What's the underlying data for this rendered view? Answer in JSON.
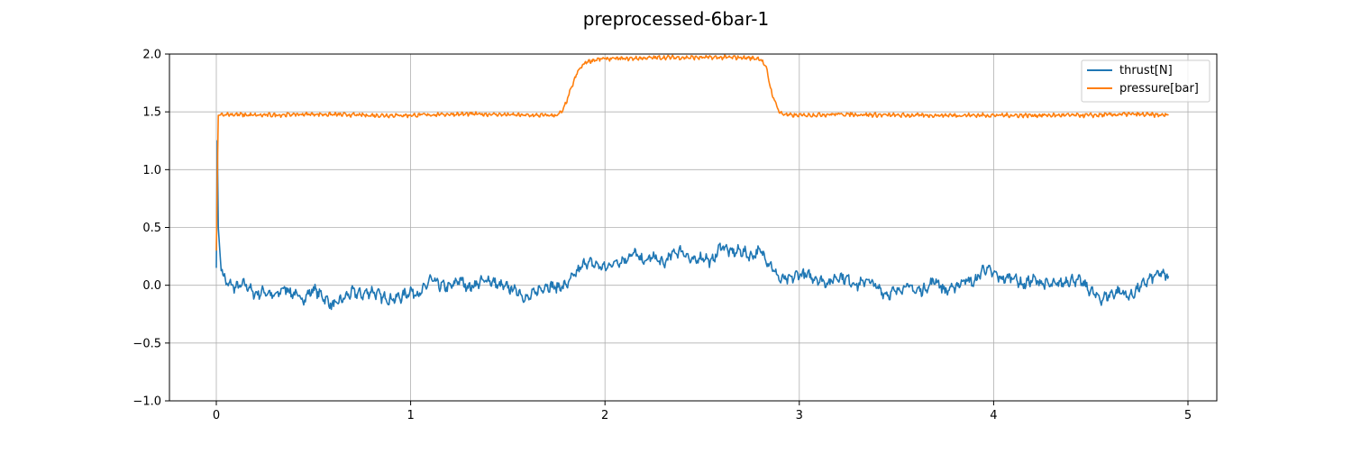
{
  "chart_data": {
    "type": "line",
    "title": "preprocessed-6bar-1",
    "xlabel": "",
    "ylabel": "",
    "xlim": [
      -0.245,
      4.9
    ],
    "ylim": [
      -1.0,
      2.0
    ],
    "grid": true,
    "legend_position": "top-right",
    "x_ticks": [
      0,
      1,
      2,
      3,
      4,
      5
    ],
    "x_tick_labels": [
      "0",
      "1",
      "2",
      "3",
      "4",
      "5"
    ],
    "y_ticks": [
      -1.0,
      -0.5,
      0.0,
      0.5,
      1.0,
      1.5,
      2.0
    ],
    "y_tick_labels": [
      "−1.0",
      "−0.5",
      "0.0",
      "0.5",
      "1.0",
      "1.5",
      "2.0"
    ],
    "series": [
      {
        "name": "thrust[N]",
        "color": "#1f77b4",
        "x": [
          0.0,
          0.005,
          0.01,
          0.02,
          0.03,
          0.05,
          0.08,
          0.1,
          0.15,
          0.2,
          0.25,
          0.3,
          0.35,
          0.4,
          0.45,
          0.5,
          0.55,
          0.6,
          0.65,
          0.7,
          0.75,
          0.8,
          0.85,
          0.9,
          0.95,
          1.0,
          1.05,
          1.1,
          1.15,
          1.2,
          1.25,
          1.3,
          1.35,
          1.4,
          1.45,
          1.5,
          1.55,
          1.6,
          1.65,
          1.7,
          1.75,
          1.8,
          1.85,
          1.9,
          1.95,
          2.0,
          2.05,
          2.1,
          2.15,
          2.2,
          2.25,
          2.3,
          2.35,
          2.4,
          2.45,
          2.5,
          2.55,
          2.6,
          2.65,
          2.7,
          2.75,
          2.8,
          2.85,
          2.9,
          2.95,
          3.0,
          3.05,
          3.1,
          3.15,
          3.2,
          3.25,
          3.3,
          3.35,
          3.4,
          3.45,
          3.5,
          3.55,
          3.6,
          3.65,
          3.7,
          3.75,
          3.8,
          3.85,
          3.9,
          3.95,
          4.0,
          4.05,
          4.1,
          4.15,
          4.2,
          4.25,
          4.3,
          4.35,
          4.4,
          4.45,
          4.5,
          4.55,
          4.6,
          4.65,
          4.7,
          4.75,
          4.8,
          4.85,
          4.9
        ],
        "y": [
          0.15,
          1.25,
          0.5,
          0.25,
          0.12,
          0.02,
          0.0,
          -0.02,
          0.01,
          -0.08,
          -0.05,
          -0.1,
          -0.02,
          -0.08,
          -0.12,
          -0.03,
          -0.1,
          -0.18,
          -0.12,
          -0.06,
          -0.08,
          -0.05,
          -0.1,
          -0.12,
          -0.1,
          -0.05,
          -0.08,
          0.05,
          0.0,
          -0.02,
          0.05,
          -0.02,
          0.02,
          0.05,
          0.0,
          -0.02,
          -0.05,
          -0.12,
          -0.05,
          0.0,
          -0.02,
          0.0,
          0.1,
          0.2,
          0.18,
          0.15,
          0.2,
          0.22,
          0.28,
          0.2,
          0.25,
          0.18,
          0.28,
          0.3,
          0.2,
          0.25,
          0.2,
          0.35,
          0.28,
          0.3,
          0.25,
          0.3,
          0.18,
          0.05,
          0.05,
          0.1,
          0.08,
          0.05,
          0.02,
          0.08,
          0.05,
          0.0,
          0.05,
          -0.02,
          -0.08,
          -0.05,
          0.0,
          -0.05,
          -0.03,
          0.05,
          -0.05,
          -0.02,
          0.05,
          0.02,
          0.15,
          0.1,
          0.05,
          0.08,
          0.0,
          0.05,
          0.02,
          0.0,
          0.02,
          0.05,
          0.03,
          -0.05,
          -0.12,
          -0.08,
          -0.05,
          -0.1,
          -0.02,
          0.05,
          0.1,
          0.08
        ]
      },
      {
        "name": "pressure[bar]",
        "color": "#ff7f0e",
        "x": [
          0.0,
          0.01,
          0.05,
          0.2,
          0.5,
          0.8,
          1.0,
          1.2,
          1.4,
          1.6,
          1.75,
          1.78,
          1.8,
          1.83,
          1.86,
          1.9,
          1.95,
          2.0,
          2.1,
          2.3,
          2.5,
          2.7,
          2.8,
          2.83,
          2.86,
          2.9,
          2.95,
          3.0,
          3.2,
          3.5,
          3.8,
          4.0,
          4.2,
          4.5,
          4.7,
          4.9
        ],
        "y": [
          0.3,
          1.47,
          1.48,
          1.47,
          1.48,
          1.47,
          1.47,
          1.48,
          1.48,
          1.47,
          1.47,
          1.5,
          1.58,
          1.72,
          1.85,
          1.93,
          1.95,
          1.96,
          1.96,
          1.97,
          1.97,
          1.97,
          1.96,
          1.88,
          1.65,
          1.49,
          1.47,
          1.47,
          1.48,
          1.47,
          1.47,
          1.47,
          1.47,
          1.47,
          1.48,
          1.47
        ]
      }
    ]
  }
}
